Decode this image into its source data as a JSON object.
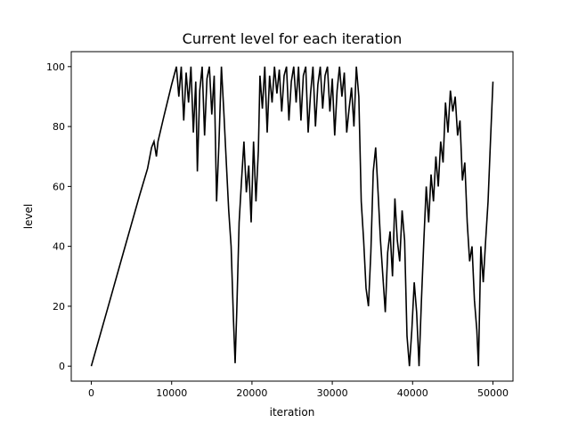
{
  "chart_data": {
    "type": "line",
    "title": "Current level for each iteration",
    "xlabel": "iteration",
    "ylabel": "level",
    "xlim": [
      -2500,
      52500
    ],
    "ylim": [
      -5,
      105
    ],
    "x_ticks": [
      0,
      10000,
      20000,
      30000,
      40000,
      50000
    ],
    "y_ticks": [
      0,
      20,
      40,
      60,
      80,
      100
    ],
    "x_tick_labels": [
      "0",
      "10000",
      "20000",
      "30000",
      "40000",
      "50000"
    ],
    "y_tick_labels": [
      "0",
      "20",
      "40",
      "60",
      "80",
      "100"
    ],
    "grid": false,
    "legend": "none",
    "line_color": "#000000",
    "series": [
      {
        "values": [
          {
            "x": 0,
            "y": 0
          },
          {
            "x": 2000,
            "y": 19
          },
          {
            "x": 4000,
            "y": 38
          },
          {
            "x": 6000,
            "y": 57
          },
          {
            "x": 7000,
            "y": 66
          },
          {
            "x": 7500,
            "y": 73
          },
          {
            "x": 7800,
            "y": 75
          },
          {
            "x": 8100,
            "y": 70
          },
          {
            "x": 8300,
            "y": 75
          },
          {
            "x": 9000,
            "y": 83
          },
          {
            "x": 10000,
            "y": 94
          },
          {
            "x": 10600,
            "y": 100
          },
          {
            "x": 10900,
            "y": 90
          },
          {
            "x": 11200,
            "y": 100
          },
          {
            "x": 11500,
            "y": 82
          },
          {
            "x": 11800,
            "y": 98
          },
          {
            "x": 12100,
            "y": 88
          },
          {
            "x": 12400,
            "y": 100
          },
          {
            "x": 12700,
            "y": 78
          },
          {
            "x": 13000,
            "y": 95
          },
          {
            "x": 13200,
            "y": 65
          },
          {
            "x": 13500,
            "y": 92
          },
          {
            "x": 13800,
            "y": 100
          },
          {
            "x": 14100,
            "y": 77
          },
          {
            "x": 14400,
            "y": 96
          },
          {
            "x": 14700,
            "y": 100
          },
          {
            "x": 15000,
            "y": 84
          },
          {
            "x": 15300,
            "y": 97
          },
          {
            "x": 15600,
            "y": 55
          },
          {
            "x": 15900,
            "y": 75
          },
          {
            "x": 16200,
            "y": 100
          },
          {
            "x": 16500,
            "y": 85
          },
          {
            "x": 16800,
            "y": 68
          },
          {
            "x": 17100,
            "y": 52
          },
          {
            "x": 17400,
            "y": 40
          },
          {
            "x": 17700,
            "y": 15
          },
          {
            "x": 17900,
            "y": 1
          },
          {
            "x": 18100,
            "y": 18
          },
          {
            "x": 18400,
            "y": 48
          },
          {
            "x": 18700,
            "y": 62
          },
          {
            "x": 19000,
            "y": 75
          },
          {
            "x": 19300,
            "y": 58
          },
          {
            "x": 19600,
            "y": 67
          },
          {
            "x": 19900,
            "y": 48
          },
          {
            "x": 20200,
            "y": 75
          },
          {
            "x": 20500,
            "y": 55
          },
          {
            "x": 20800,
            "y": 72
          },
          {
            "x": 21000,
            "y": 97
          },
          {
            "x": 21300,
            "y": 86
          },
          {
            "x": 21600,
            "y": 100
          },
          {
            "x": 21900,
            "y": 78
          },
          {
            "x": 22200,
            "y": 97
          },
          {
            "x": 22500,
            "y": 88
          },
          {
            "x": 22800,
            "y": 100
          },
          {
            "x": 23100,
            "y": 91
          },
          {
            "x": 23400,
            "y": 99
          },
          {
            "x": 23700,
            "y": 85
          },
          {
            "x": 24000,
            "y": 97
          },
          {
            "x": 24300,
            "y": 100
          },
          {
            "x": 24600,
            "y": 82
          },
          {
            "x": 24900,
            "y": 95
          },
          {
            "x": 25200,
            "y": 100
          },
          {
            "x": 25500,
            "y": 88
          },
          {
            "x": 25800,
            "y": 100
          },
          {
            "x": 26100,
            "y": 82
          },
          {
            "x": 26400,
            "y": 97
          },
          {
            "x": 26700,
            "y": 100
          },
          {
            "x": 27000,
            "y": 78
          },
          {
            "x": 27300,
            "y": 91
          },
          {
            "x": 27600,
            "y": 100
          },
          {
            "x": 27900,
            "y": 80
          },
          {
            "x": 28200,
            "y": 94
          },
          {
            "x": 28500,
            "y": 100
          },
          {
            "x": 28800,
            "y": 86
          },
          {
            "x": 29100,
            "y": 97
          },
          {
            "x": 29400,
            "y": 100
          },
          {
            "x": 29700,
            "y": 85
          },
          {
            "x": 30000,
            "y": 96
          },
          {
            "x": 30300,
            "y": 77
          },
          {
            "x": 30600,
            "y": 92
          },
          {
            "x": 30900,
            "y": 100
          },
          {
            "x": 31200,
            "y": 90
          },
          {
            "x": 31500,
            "y": 98
          },
          {
            "x": 31800,
            "y": 78
          },
          {
            "x": 32100,
            "y": 86
          },
          {
            "x": 32400,
            "y": 93
          },
          {
            "x": 32700,
            "y": 80
          },
          {
            "x": 33000,
            "y": 100
          },
          {
            "x": 33300,
            "y": 90
          },
          {
            "x": 33600,
            "y": 55
          },
          {
            "x": 33900,
            "y": 42
          },
          {
            "x": 34200,
            "y": 26
          },
          {
            "x": 34500,
            "y": 20
          },
          {
            "x": 34800,
            "y": 38
          },
          {
            "x": 35100,
            "y": 65
          },
          {
            "x": 35400,
            "y": 73
          },
          {
            "x": 35700,
            "y": 58
          },
          {
            "x": 36000,
            "y": 42
          },
          {
            "x": 36300,
            "y": 30
          },
          {
            "x": 36600,
            "y": 18
          },
          {
            "x": 36900,
            "y": 38
          },
          {
            "x": 37200,
            "y": 45
          },
          {
            "x": 37500,
            "y": 30
          },
          {
            "x": 37800,
            "y": 56
          },
          {
            "x": 38100,
            "y": 42
          },
          {
            "x": 38400,
            "y": 35
          },
          {
            "x": 38700,
            "y": 52
          },
          {
            "x": 39000,
            "y": 42
          },
          {
            "x": 39300,
            "y": 10
          },
          {
            "x": 39600,
            "y": 0
          },
          {
            "x": 39900,
            "y": 12
          },
          {
            "x": 40200,
            "y": 28
          },
          {
            "x": 40500,
            "y": 18
          },
          {
            "x": 40800,
            "y": 0
          },
          {
            "x": 41100,
            "y": 22
          },
          {
            "x": 41400,
            "y": 42
          },
          {
            "x": 41700,
            "y": 60
          },
          {
            "x": 42000,
            "y": 48
          },
          {
            "x": 42300,
            "y": 64
          },
          {
            "x": 42600,
            "y": 55
          },
          {
            "x": 42900,
            "y": 70
          },
          {
            "x": 43200,
            "y": 60
          },
          {
            "x": 43500,
            "y": 75
          },
          {
            "x": 43800,
            "y": 68
          },
          {
            "x": 44100,
            "y": 88
          },
          {
            "x": 44400,
            "y": 78
          },
          {
            "x": 44700,
            "y": 92
          },
          {
            "x": 45000,
            "y": 85
          },
          {
            "x": 45300,
            "y": 90
          },
          {
            "x": 45600,
            "y": 77
          },
          {
            "x": 45900,
            "y": 82
          },
          {
            "x": 46200,
            "y": 62
          },
          {
            "x": 46500,
            "y": 68
          },
          {
            "x": 46800,
            "y": 48
          },
          {
            "x": 47100,
            "y": 35
          },
          {
            "x": 47400,
            "y": 40
          },
          {
            "x": 47700,
            "y": 22
          },
          {
            "x": 48000,
            "y": 12
          },
          {
            "x": 48200,
            "y": 0
          },
          {
            "x": 48500,
            "y": 40
          },
          {
            "x": 48800,
            "y": 28
          },
          {
            "x": 49100,
            "y": 42
          },
          {
            "x": 49400,
            "y": 55
          },
          {
            "x": 49700,
            "y": 75
          },
          {
            "x": 50000,
            "y": 95
          }
        ]
      }
    ]
  }
}
